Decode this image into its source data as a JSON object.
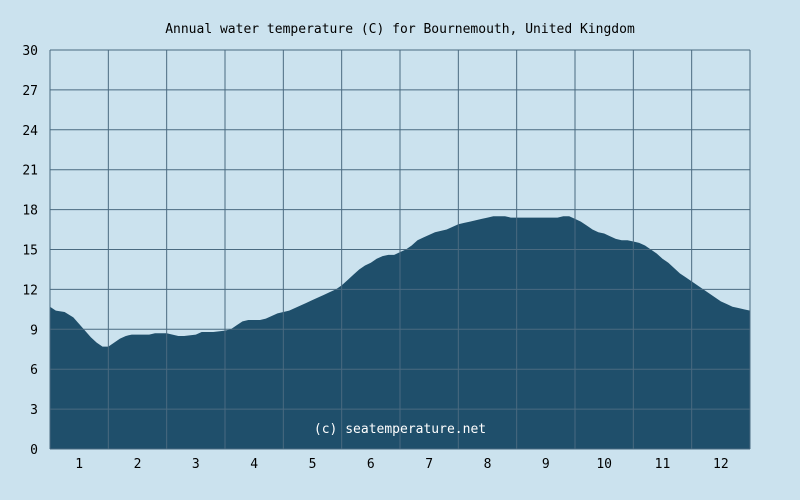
{
  "chart_data": {
    "type": "area",
    "title": "Annual water temperature (C) for Bournemouth, United Kingdom",
    "xlabel": "",
    "ylabel": "",
    "watermark": "(c) seatemperature.net",
    "ylim": [
      0,
      30
    ],
    "xlim": [
      0.5,
      12.5
    ],
    "y_ticks": [
      "0",
      "3",
      "6",
      "9",
      "12",
      "15",
      "18",
      "21",
      "24",
      "27",
      "30"
    ],
    "x_ticks": [
      "1",
      "2",
      "3",
      "4",
      "5",
      "6",
      "7",
      "8",
      "9",
      "10",
      "11",
      "12"
    ],
    "grid": true,
    "colors": {
      "background": "#cbe2ee",
      "fill": "#1f4f6b",
      "grid": "#4a6a80",
      "text": "#000000",
      "watermark": "#ffffff"
    },
    "series": [
      {
        "x": [
          0.5,
          0.6,
          0.75,
          0.9,
          1.0,
          1.1,
          1.2,
          1.3,
          1.4,
          1.5,
          1.6,
          1.7,
          1.8,
          1.9,
          2.0,
          2.2,
          2.3,
          2.5,
          2.6,
          2.7,
          2.8,
          3.0,
          3.1,
          3.3,
          3.5,
          3.6,
          3.7,
          3.8,
          3.9,
          4.0,
          4.1,
          4.2,
          4.3,
          4.4,
          4.5,
          4.6,
          4.7,
          4.8,
          4.9,
          5.0,
          5.1,
          5.2,
          5.3,
          5.4,
          5.5,
          5.6,
          5.7,
          5.8,
          5.9,
          6.0,
          6.1,
          6.2,
          6.3,
          6.4,
          6.5,
          6.6,
          6.7,
          6.8,
          6.9,
          7.0,
          7.1,
          7.2,
          7.3,
          7.4,
          7.5,
          7.6,
          7.7,
          7.8,
          7.9,
          8.0,
          8.1,
          8.2,
          8.3,
          8.4,
          8.5,
          8.6,
          8.7,
          8.8,
          8.9,
          9.0,
          9.1,
          9.2,
          9.3,
          9.4,
          9.5,
          9.6,
          9.7,
          9.8,
          9.9,
          10.0,
          10.1,
          10.2,
          10.3,
          10.4,
          10.5,
          10.6,
          10.7,
          10.8,
          10.9,
          11.0,
          11.1,
          11.2,
          11.3,
          11.4,
          11.5,
          11.6,
          11.7,
          11.8,
          11.9,
          12.0,
          12.1,
          12.2,
          12.3,
          12.4,
          12.5
        ],
        "values": [
          10.7,
          10.4,
          10.3,
          9.9,
          9.4,
          8.9,
          8.4,
          8.0,
          7.7,
          7.7,
          8.0,
          8.3,
          8.5,
          8.6,
          8.6,
          8.6,
          8.7,
          8.7,
          8.6,
          8.5,
          8.5,
          8.6,
          8.8,
          8.8,
          8.9,
          9.0,
          9.3,
          9.6,
          9.7,
          9.7,
          9.7,
          9.8,
          10.0,
          10.2,
          10.3,
          10.4,
          10.6,
          10.8,
          11.0,
          11.2,
          11.4,
          11.6,
          11.8,
          12.0,
          12.3,
          12.7,
          13.1,
          13.5,
          13.8,
          14.0,
          14.3,
          14.5,
          14.6,
          14.6,
          14.8,
          15.0,
          15.3,
          15.7,
          15.9,
          16.1,
          16.3,
          16.4,
          16.5,
          16.7,
          16.9,
          17.0,
          17.1,
          17.2,
          17.3,
          17.4,
          17.5,
          17.5,
          17.5,
          17.4,
          17.4,
          17.4,
          17.4,
          17.4,
          17.4,
          17.4,
          17.4,
          17.4,
          17.5,
          17.5,
          17.3,
          17.1,
          16.8,
          16.5,
          16.3,
          16.2,
          16.0,
          15.8,
          15.7,
          15.7,
          15.6,
          15.5,
          15.3,
          15.0,
          14.7,
          14.3,
          14.0,
          13.6,
          13.2,
          12.9,
          12.6,
          12.3,
          12.0,
          11.7,
          11.4,
          11.1,
          10.9,
          10.7,
          10.6,
          10.5,
          10.4
        ]
      }
    ]
  }
}
